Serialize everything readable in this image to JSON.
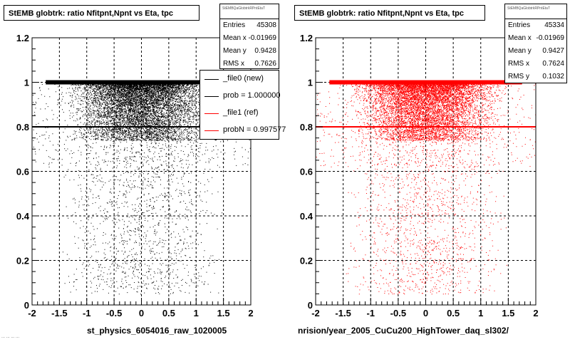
{
  "chart_data": [
    {
      "type": "scatter",
      "title": "StEMB globtrk: ratio Nfitpnt,Npnt vs Eta, tpc",
      "xlabel": "st_physics_6054016_raw_1020005",
      "ylabel": "",
      "xlim": [
        -2,
        2
      ],
      "ylim": [
        0,
        1.2
      ],
      "x_ticks": [
        "-2",
        "-1.5",
        "-1",
        "-0.5",
        "0",
        "0.5",
        "1",
        "1.5",
        "2"
      ],
      "y_ticks": [
        "0",
        "0.2",
        "0.4",
        "0.6",
        "0.8",
        "1",
        "1.2"
      ],
      "grid": true,
      "marker_color": "#000000",
      "series": [
        {
          "name": "_file0 (new)",
          "color": "#000000",
          "note_bands": [
            {
              "y": 1.0,
              "x_range": [
                -1.75,
                1.75
              ],
              "density": "saturated"
            },
            {
              "y": 0.8,
              "x_range": [
                -2.0,
                2.0
              ],
              "density": "high"
            }
          ],
          "dense_region": {
            "x": [
              -1.5,
              1.5
            ],
            "y": [
              0.75,
              1.0
            ]
          },
          "sparse_region": {
            "x": [
              -1.5,
              1.5
            ],
            "y": [
              0.05,
              0.75
            ]
          }
        }
      ],
      "stats": {
        "name": "StEMBQaGlobtrkRPntEtaT",
        "entries": "45308",
        "mean_x": "-0.01969",
        "mean_y": "0.9428",
        "rms_x": "0.7626"
      },
      "legend": [
        {
          "label": "_file0 (new)",
          "color": "#000000"
        },
        {
          "label": "prob = 1.000000",
          "color": "#000000"
        },
        {
          "label": "_file1 (ref)",
          "color": "#ff0000"
        },
        {
          "label": "probN = 0.997577",
          "color": "#ff0000"
        }
      ]
    },
    {
      "type": "scatter",
      "title": "StEMB globtrk: ratio Nfitpnt,Npnt vs Eta, tpc",
      "xlabel": "nrision/year_2005_CuCu200_HighTower_daq_sl302/",
      "ylabel": "",
      "xlim": [
        -2,
        2
      ],
      "ylim": [
        0,
        1.2
      ],
      "x_ticks": [
        "-2",
        "-1.5",
        "-1",
        "-0.5",
        "0",
        "0.5",
        "1",
        "1.5",
        "2"
      ],
      "y_ticks": [
        "0",
        "0.2",
        "0.4",
        "0.6",
        "0.8",
        "1",
        "1.2"
      ],
      "grid": true,
      "marker_color": "#ff0000",
      "series": [
        {
          "name": "_file1 (ref)",
          "color": "#ff0000",
          "note_bands": [
            {
              "y": 1.0,
              "x_range": [
                -1.75,
                1.75
              ],
              "density": "saturated"
            },
            {
              "y": 0.8,
              "x_range": [
                -2.0,
                2.0
              ],
              "density": "high"
            }
          ],
          "dense_region": {
            "x": [
              -1.5,
              1.5
            ],
            "y": [
              0.75,
              1.0
            ]
          },
          "sparse_region": {
            "x": [
              -1.5,
              1.5
            ],
            "y": [
              0.05,
              0.75
            ]
          }
        }
      ],
      "stats": {
        "name": "StEMBQaGlobtrkRPntEtaT",
        "entries": "45334",
        "mean_x": "-0.01969",
        "mean_y": "0.9427",
        "rms_x": "0.7624",
        "rms_y": "0.1032"
      }
    }
  ],
  "labels": {
    "entries": "Entries",
    "mean_x": "Mean x",
    "mean_y": "Mean y",
    "rms_x": "RMS x",
    "rms_y": "RMS y"
  },
  "corner_text": "... ... ... ..."
}
